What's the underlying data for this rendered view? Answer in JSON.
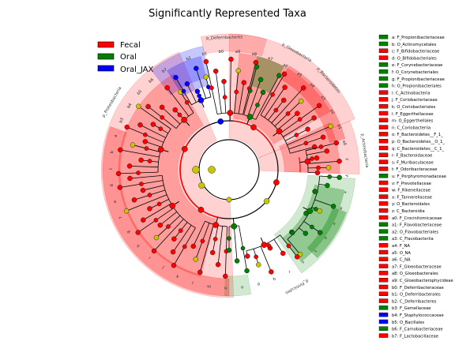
{
  "title": "Significantly Represented Taxa",
  "colors": {
    "Fecal": "#ff0000",
    "Oral": "#008000",
    "Oral_JAX": "#0000ff",
    "node_default": "#c8c800",
    "line": "#000000"
  },
  "legend": [
    {
      "label": "Fecal",
      "group": "Fecal"
    },
    {
      "label": "Oral",
      "group": "Oral"
    },
    {
      "label": "Oral_JAX",
      "group": "Oral_JAX"
    }
  ],
  "key": [
    {
      "text": "a: F_Propionibacteriaceae",
      "group": "Oral"
    },
    {
      "text": "b: O_Actinomycetales",
      "group": "Oral"
    },
    {
      "text": "c: F_Bifidobacteriaceae",
      "group": "Fecal"
    },
    {
      "text": "d: O_Bifidobacteriales",
      "group": "Fecal"
    },
    {
      "text": "e: F_Corynebacteriaceae",
      "group": "Oral"
    },
    {
      "text": "f: O_Corynebacteriales",
      "group": "Oral"
    },
    {
      "text": "g: F_Propionibacteriaceae",
      "group": "Oral"
    },
    {
      "text": "h: O_Propionibacteriales",
      "group": "Oral"
    },
    {
      "text": "i: C_Actinobacteria",
      "group": "Fecal"
    },
    {
      "text": "j: F_Coriobacteriaceae",
      "group": "Fecal"
    },
    {
      "text": "k: O_Coriobacteriales",
      "group": "Fecal"
    },
    {
      "text": "l: F_Eggerthellaceae",
      "group": "Fecal"
    },
    {
      "text": "m: O_Eggerthellales",
      "group": "Fecal"
    },
    {
      "text": "n: C_Coriobacteriia",
      "group": "Fecal"
    },
    {
      "text": "o: F_Bacteroidetes__F_1_",
      "group": "Fecal"
    },
    {
      "text": "p: O_Bacteroidetes__O_1_",
      "group": "Fecal"
    },
    {
      "text": "q: C_Bacteroidetes__C_1_",
      "group": "Fecal"
    },
    {
      "text": "r: F_Bacteroidaceae",
      "group": "Fecal"
    },
    {
      "text": "s: F_Muribaculaceae",
      "group": "Fecal"
    },
    {
      "text": "t: F_Odoribacteraceae",
      "group": "Fecal"
    },
    {
      "text": "u: F_Porphyromonadaceae",
      "group": "Oral"
    },
    {
      "text": "v: F_Prevotellaceae",
      "group": "Fecal"
    },
    {
      "text": "w: F_Rikenellaceae",
      "group": "Fecal"
    },
    {
      "text": "x: F_Tannerellaceae",
      "group": "Fecal"
    },
    {
      "text": "y: O_Bacteroidales",
      "group": "Fecal"
    },
    {
      "text": "z: C_Bacteroidia",
      "group": "Fecal"
    },
    {
      "text": "a0: F_Crocinitomicaceae",
      "group": "Fecal"
    },
    {
      "text": "a1: F_Flavobacteriaceae",
      "group": "Oral"
    },
    {
      "text": "a2: O_Flavobacteriales",
      "group": "Oral"
    },
    {
      "text": "a3: C_Flavobacteriia",
      "group": "Oral"
    },
    {
      "text": "a4: F_NA",
      "group": "Fecal"
    },
    {
      "text": "a5: O_NA",
      "group": "Fecal"
    },
    {
      "text": "a6: C_NA",
      "group": "Fecal"
    },
    {
      "text": "a7: F_Gloeobacteraceae",
      "group": "Fecal"
    },
    {
      "text": "a8: O_Gloeobacterales",
      "group": "Fecal"
    },
    {
      "text": "a9: C_Gloeobacterophycideae",
      "group": "Fecal"
    },
    {
      "text": "b0: F_Deferribacteraceae",
      "group": "Fecal"
    },
    {
      "text": "b1: O_Deferribacterales",
      "group": "Fecal"
    },
    {
      "text": "b2: C_Deferribacteres",
      "group": "Fecal"
    },
    {
      "text": "b3: F_Gemellaceae",
      "group": "Oral"
    },
    {
      "text": "b4: F_Staphylococcaceae",
      "group": "Oral_JAX"
    },
    {
      "text": "b5: O_Bacillales",
      "group": "Oral_JAX"
    },
    {
      "text": "b6: F_Carnobacteriaceae",
      "group": "Oral"
    },
    {
      "text": "b7: F_Lactobacillaceae",
      "group": "Fecal"
    }
  ],
  "clade_labels": [
    {
      "text": "p_Deferribacteres"
    },
    {
      "text": "p_Gloeobacteria"
    },
    {
      "text": "p_Bacteroidetes"
    },
    {
      "text": "p_Actinobacteria"
    },
    {
      "text": "p_Firmicutes"
    },
    {
      "text": "p_Proteobacteria"
    }
  ],
  "sector_labels": [
    "b2",
    "b1",
    "b0",
    "a9",
    "a8",
    "a7",
    "a6",
    "a5",
    "a4",
    "a3",
    "a2",
    "a1",
    "a0",
    "z",
    "y",
    "x",
    "w",
    "v",
    "u",
    "t",
    "s",
    "r",
    "q",
    "p",
    "o",
    "n",
    "m",
    "l",
    "k",
    "j",
    "i",
    "h",
    "g",
    "f",
    "e",
    "d",
    "c",
    "b",
    "a",
    "b3",
    "b4",
    "b5",
    "b6",
    "b7"
  ]
}
